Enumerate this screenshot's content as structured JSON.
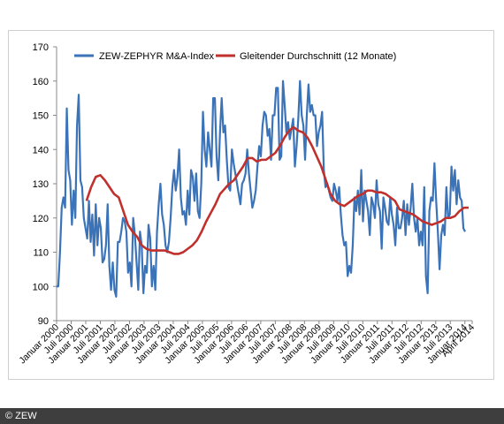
{
  "footer": {
    "copyright": "© ZEW"
  },
  "colors": {
    "index": "#3b73b9",
    "average": "#c0302c",
    "axis": "#888888",
    "text": "#000000",
    "footer_bg": "#3e3e3e"
  },
  "chart_data": {
    "type": "line",
    "title": "",
    "xlabel": "",
    "ylabel": "",
    "ylim": [
      90,
      170
    ],
    "yticks": [
      90,
      100,
      110,
      120,
      130,
      140,
      150,
      160,
      170
    ],
    "grid": false,
    "legend_position": "top",
    "x_tick_labels": [
      "Januar 2000",
      "Juli 2000",
      "Januar 2001",
      "Juli 2001",
      "Januar 2002",
      "Juli 2002",
      "Januar 2003",
      "Juli 2003",
      "Januar 2004",
      "Juli 2004",
      "Januar 2005",
      "Juli 2005",
      "Januar 2006",
      "Juli 2006",
      "Januar 2007",
      "Juli 2007",
      "Januar 2008",
      "Juli 2008",
      "Januar 2009",
      "Juli 2009",
      "Januar 2010",
      "Juli 2010",
      "Januar 2011",
      "Juli 2011",
      "Januar 2012",
      "Juli 2012",
      "Januar 2013",
      "Juli 2013",
      "Januar 2014",
      "April 2014"
    ],
    "series": [
      {
        "name": "ZEW-ZEPHYR M&A-Index",
        "color": "#3b73b9",
        "values": [
          100,
          100,
          110,
          123,
          126,
          123,
          152,
          134,
          131,
          118,
          128,
          120,
          147,
          156,
          131,
          129,
          120,
          117,
          114,
          125,
          113,
          121,
          109,
          124,
          112,
          120,
          117,
          107,
          108,
          112,
          124,
          106,
          99,
          107,
          99,
          97,
          113,
          113,
          116,
          120,
          119,
          116,
          104,
          107,
          100,
          120,
          115,
          107,
          99,
          116,
          112,
          98,
          106,
          104,
          118,
          114,
          100,
          106,
          99,
          116,
          124,
          130,
          121,
          118,
          112,
          110,
          113,
          120,
          129,
          134,
          128,
          132,
          140,
          126,
          121,
          122,
          118,
          128,
          121,
          134,
          132,
          125,
          133,
          122,
          120,
          130,
          151,
          140,
          135,
          145,
          140,
          135,
          155,
          155,
          138,
          131,
          145,
          155,
          145,
          147,
          137,
          129,
          128,
          140,
          136,
          133,
          130,
          127,
          124,
          130,
          131,
          133,
          140,
          133,
          128,
          123,
          125,
          128,
          135,
          141,
          138,
          147,
          151,
          150,
          144,
          146,
          137,
          150,
          150,
          158,
          158,
          137,
          138,
          160,
          153,
          145,
          148,
          143,
          146,
          149,
          135,
          141,
          149,
          160,
          150,
          147,
          137,
          150,
          159,
          151,
          153,
          150,
          150,
          141,
          145,
          147,
          151,
          134,
          129,
          130,
          128,
          126,
          125,
          130,
          128,
          125,
          129,
          121,
          115,
          112,
          113,
          103,
          106,
          104,
          112,
          126,
          122,
          128,
          121,
          134,
          119,
          128,
          125,
          122,
          115,
          126,
          124,
          120,
          131,
          124,
          122,
          111,
          126,
          123,
          119,
          118,
          126,
          121,
          118,
          112,
          123,
          117,
          117,
          120,
          125,
          115,
          124,
          118,
          123,
          130,
          120,
          116,
          120,
          112,
          116,
          112,
          129,
          103,
          98,
          122,
          126,
          125,
          136,
          125,
          116,
          105,
          115,
          118,
          115,
          129,
          120,
          121,
          135,
          128,
          134,
          124,
          131,
          126,
          125,
          117,
          116
        ],
        "x_start": "Januar 2000",
        "x_end": "April 2014"
      },
      {
        "name": "Gleitender Durchschnitt (12 Monate)",
        "color": "#c0302c",
        "values": [
          125,
          129,
          132,
          132.5,
          131,
          129,
          127,
          126,
          122,
          118,
          116,
          114.5,
          112,
          111,
          110.5,
          110.5,
          110.5,
          110.5,
          110,
          109.5,
          109.5,
          110,
          111,
          112,
          113.5,
          116,
          119,
          121.5,
          124,
          127,
          128.5,
          130,
          131,
          133,
          135,
          137.5,
          137.5,
          136.5,
          137,
          137,
          138,
          139,
          141,
          143.5,
          145.5,
          146.5,
          145.5,
          145,
          143.5,
          141,
          138,
          135,
          131,
          127,
          125,
          124,
          123.5,
          124.5,
          125.5,
          126.5,
          127,
          128,
          128,
          127.5,
          127.5,
          127,
          126,
          125,
          122.5,
          122,
          121.5,
          121,
          120,
          119,
          118.5,
          118,
          118.5,
          119,
          120,
          120,
          120.5,
          122,
          123,
          123
        ]
      }
    ]
  }
}
